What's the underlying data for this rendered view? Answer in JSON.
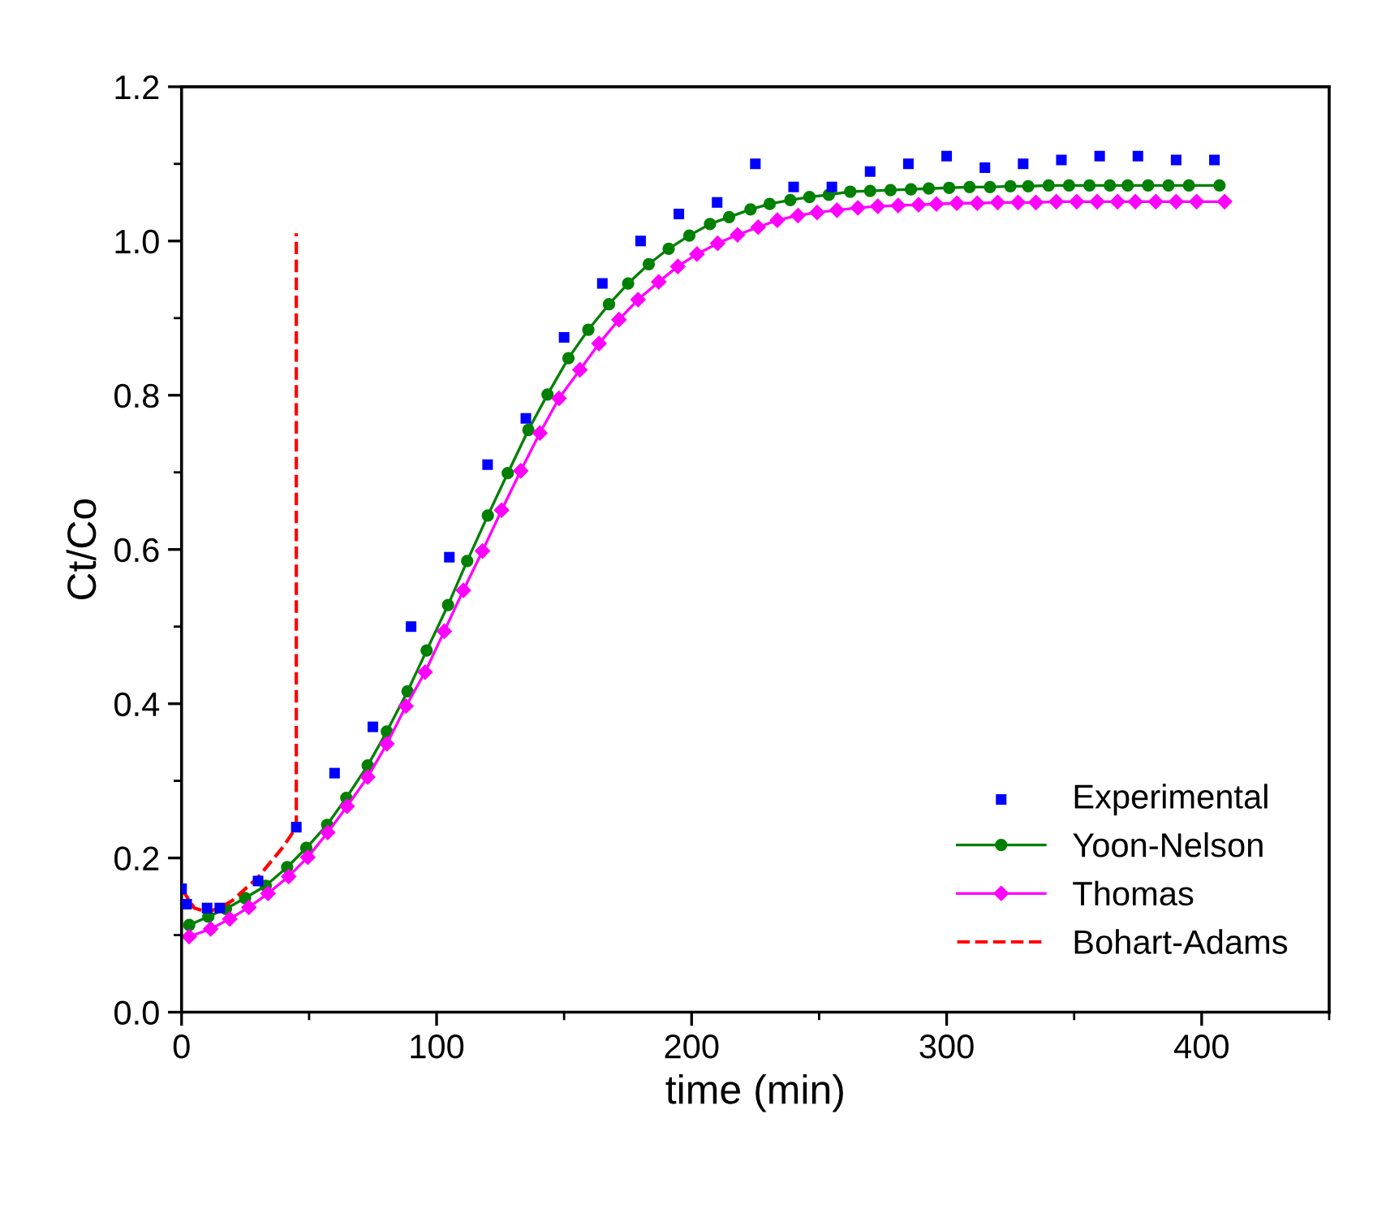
{
  "chart_data": {
    "type": "line",
    "xlabel": "time (min)",
    "ylabel": "Ct/Co",
    "xlim": [
      0,
      450
    ],
    "xticks": [
      0,
      100,
      200,
      300,
      400
    ],
    "ylim": [
      0,
      1.2
    ],
    "yticks": [
      {
        "value": 0,
        "label": "0.0"
      },
      0.2,
      0.4,
      0.6,
      0.8,
      {
        "value": 1,
        "label": "1.0"
      },
      1.2
    ],
    "grid": false,
    "legend": "bottom right",
    "series": [
      {
        "name": "Experimental",
        "type": "scatter",
        "marker": "square",
        "color": "#0000ff",
        "x": [
          0,
          2,
          10,
          15,
          30,
          45,
          60,
          75,
          90,
          105,
          120,
          135,
          150,
          165,
          180,
          195,
          210,
          225,
          240,
          255,
          270,
          285,
          300,
          315,
          330,
          345,
          360,
          375,
          390,
          405
        ],
        "values": [
          0.16,
          0.14,
          0.135,
          0.135,
          0.17,
          0.24,
          0.31,
          0.37,
          0.5,
          0.59,
          0.71,
          0.77,
          0.875,
          0.945,
          1.0,
          1.035,
          1.05,
          1.1,
          1.07,
          1.07,
          1.09,
          1.1,
          1.11,
          1.095,
          1.1,
          1.105,
          1.11,
          1.11,
          1.105,
          1.105
        ]
      },
      {
        "name": "Yoon-Nelson",
        "marker": "circle",
        "line_style": "solid",
        "color": "#008000",
        "x": [
          3,
          10.5,
          17.4,
          24.9,
          33,
          41.4,
          48.9,
          57.1,
          64.6,
          73,
          80.5,
          88.6,
          96.1,
          104.5,
          112,
          120.1,
          127.9,
          136,
          143.5,
          151.7,
          159.5,
          167.6,
          175.1,
          183.2,
          191,
          199.1,
          207.2,
          214.7,
          223.1,
          230.6,
          238.7,
          246.2,
          253.8,
          262.2,
          270,
          278,
          286,
          293,
          301,
          309,
          317,
          325,
          332,
          340,
          348,
          356,
          364,
          371,
          379,
          387,
          395,
          407
        ],
        "values": [
          0.113,
          0.124,
          0.134,
          0.148,
          0.164,
          0.188,
          0.213,
          0.243,
          0.278,
          0.32,
          0.364,
          0.416,
          0.469,
          0.528,
          0.585,
          0.644,
          0.699,
          0.755,
          0.801,
          0.848,
          0.885,
          0.918,
          0.945,
          0.97,
          0.99,
          1.007,
          1.022,
          1.031,
          1.041,
          1.048,
          1.053,
          1.057,
          1.06,
          1.064,
          1.065,
          1.066,
          1.067,
          1.068,
          1.069,
          1.07,
          1.07,
          1.071,
          1.071,
          1.072,
          1.072,
          1.072,
          1.072,
          1.072,
          1.072,
          1.072,
          1.072,
          1.072
        ]
      },
      {
        "name": "Thomas",
        "marker": "diamond",
        "line_style": "solid",
        "color": "#ff00ff",
        "x": [
          3,
          11.4,
          18.9,
          26.4,
          33.9,
          42,
          49.5,
          57.3,
          64.9,
          73,
          80.5,
          88,
          95.5,
          103,
          110.5,
          118,
          125.5,
          133,
          140.5,
          148,
          156.2,
          163.7,
          171.5,
          179,
          187.1,
          194.6,
          202.1,
          210.2,
          218,
          226.1,
          233.6,
          241.7,
          249.2,
          257,
          265.2,
          273,
          281,
          289,
          296,
          304,
          312,
          320,
          328,
          335,
          343,
          351,
          359,
          367,
          374,
          382,
          390,
          398,
          409
        ],
        "values": [
          0.098,
          0.108,
          0.121,
          0.136,
          0.154,
          0.176,
          0.201,
          0.233,
          0.267,
          0.305,
          0.348,
          0.397,
          0.441,
          0.494,
          0.547,
          0.598,
          0.651,
          0.702,
          0.751,
          0.796,
          0.833,
          0.867,
          0.898,
          0.924,
          0.947,
          0.967,
          0.983,
          0.997,
          1.008,
          1.018,
          1.027,
          1.033,
          1.037,
          1.04,
          1.043,
          1.045,
          1.046,
          1.047,
          1.048,
          1.049,
          1.049,
          1.05,
          1.05,
          1.05,
          1.051,
          1.051,
          1.051,
          1.051,
          1.051,
          1.051,
          1.051,
          1.051,
          1.051
        ]
      },
      {
        "name": "Bohart-Adams",
        "marker": "none",
        "line_style": "dashed",
        "color": "#ff0000",
        "x": [
          0,
          5,
          10,
          15,
          20,
          25,
          30,
          35,
          40,
          45,
          45
        ],
        "values": [
          0.16,
          0.135,
          0.13,
          0.135,
          0.145,
          0.16,
          0.175,
          0.195,
          0.215,
          0.24,
          1.01
        ]
      }
    ]
  }
}
